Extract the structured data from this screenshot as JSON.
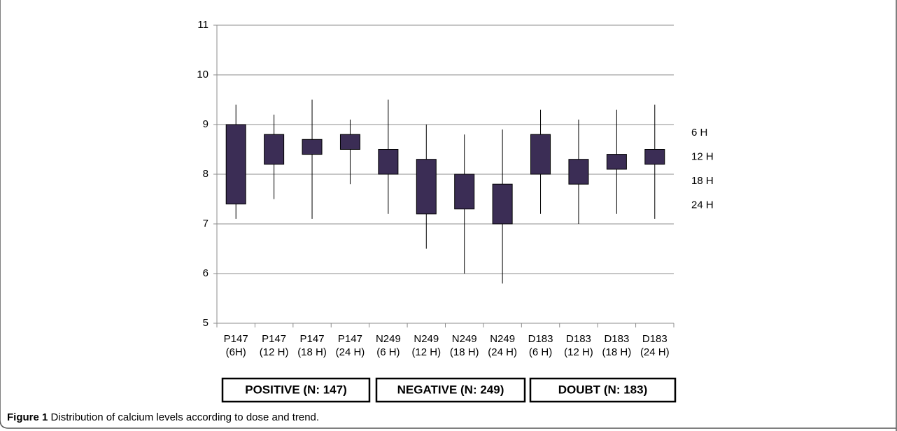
{
  "chart_data": {
    "type": "candlestick",
    "categories": [
      [
        "P147",
        "(6H)"
      ],
      [
        "P147",
        "(12 H)"
      ],
      [
        "P147",
        "(18 H)"
      ],
      [
        "P147",
        "(24 H)"
      ],
      [
        "N249",
        "(6 H)"
      ],
      [
        "N249",
        "(12 H)"
      ],
      [
        "N249",
        "(18 H)"
      ],
      [
        "N249",
        "(24 H)"
      ],
      [
        "D183",
        "(6 H)"
      ],
      [
        "D183",
        "(12 H)"
      ],
      [
        "D183",
        "(18 H)"
      ],
      [
        "D183",
        "(24 H)"
      ]
    ],
    "high": [
      9.4,
      9.2,
      9.5,
      9.1,
      9.5,
      9.0,
      8.8,
      8.9,
      9.3,
      9.1,
      9.3,
      9.4
    ],
    "box_high": [
      9.0,
      8.8,
      8.7,
      8.8,
      8.5,
      8.3,
      8.0,
      7.8,
      8.8,
      8.3,
      8.4,
      8.5
    ],
    "box_low": [
      7.4,
      8.2,
      8.4,
      8.5,
      8.0,
      7.2,
      7.3,
      7.0,
      8.0,
      7.8,
      8.1,
      8.2
    ],
    "low": [
      7.1,
      7.5,
      7.1,
      7.8,
      7.2,
      6.5,
      6.0,
      5.8,
      7.2,
      7.0,
      7.2,
      7.1
    ],
    "color": "#3b2d55",
    "ylim": [
      5,
      11
    ],
    "yticks": [
      5,
      6,
      7,
      8,
      9,
      10,
      11
    ],
    "grid": true,
    "side_labels": [
      "6 H",
      "12 H",
      "18 H",
      "24 H"
    ],
    "groups": [
      "POSITIVE (N: 147)",
      "NEGATIVE (N: 249)",
      "DOUBT (N: 183)"
    ]
  },
  "caption": {
    "label": "Figure 1",
    "text": "Distribution of calcium levels according to dose and trend."
  }
}
